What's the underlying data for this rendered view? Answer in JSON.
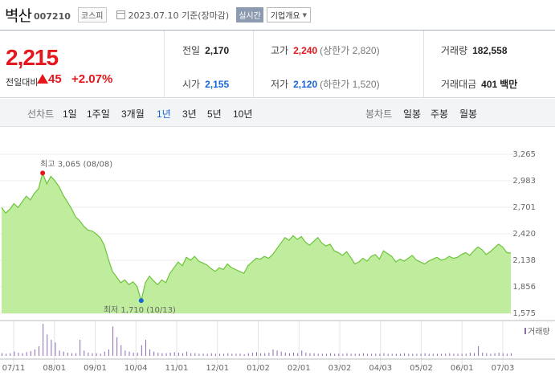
{
  "header": {
    "name": "벽산",
    "code": "007210",
    "market": "코스피",
    "date_text": "2023.07.10 기준(장마감)",
    "realtime": "실시간",
    "company_info": "기업개요"
  },
  "price": {
    "current": "2,215",
    "change_label": "전일대비",
    "change_abs": "45",
    "change_pct": "+2.07%"
  },
  "stats": {
    "prev_close": {
      "label": "전일",
      "value": "2,170"
    },
    "open": {
      "label": "시가",
      "value": "2,155"
    },
    "high": {
      "label": "고가",
      "value": "2,240",
      "sub": "(상한가 2,820)"
    },
    "low": {
      "label": "저가",
      "value": "2,120",
      "sub": "(하한가 1,520)"
    },
    "volume": {
      "label": "거래량",
      "value": "182,558"
    },
    "trade_value": {
      "label": "거래대금",
      "value": "401",
      "unit": "백만"
    }
  },
  "period": {
    "line_label": "선차트",
    "line_options": [
      "1일",
      "1주일",
      "3개월",
      "1년",
      "3년",
      "5년",
      "10년"
    ],
    "active": "1년",
    "candle_label": "봉차트",
    "candle_options": [
      "일봉",
      "주봉",
      "월봉"
    ]
  },
  "colors": {
    "up": "#e5161c",
    "down": "#1766d6",
    "area": "#b4ea8c",
    "line": "#6cc43a"
  },
  "chart_data": {
    "type": "area",
    "y_ticks": [
      "3,265",
      "2,983",
      "2,701",
      "2,420",
      "2,138",
      "1,856",
      "1,575"
    ],
    "ylim": [
      1575,
      3265
    ],
    "x_ticks": [
      "07/11",
      "08/01",
      "09/01",
      "10/04",
      "11/01",
      "12/01",
      "01/02",
      "02/01",
      "03/02",
      "04/03",
      "05/02",
      "06/01",
      "07/03"
    ],
    "high_label": "최고 3,065 (08/08)",
    "low_label": "최저 1,710 (10/13)",
    "volume_label": "거래량",
    "values": [
      2700,
      2640,
      2680,
      2740,
      2700,
      2760,
      2820,
      2780,
      2850,
      2900,
      3065,
      2950,
      3030,
      2980,
      2920,
      2830,
      2760,
      2690,
      2600,
      2560,
      2500,
      2460,
      2450,
      2420,
      2380,
      2300,
      2150,
      2020,
      1960,
      1900,
      1930,
      1880,
      1910,
      1860,
      1710,
      1900,
      1970,
      1920,
      1880,
      1930,
      1900,
      2000,
      2060,
      2120,
      2080,
      2170,
      2140,
      2180,
      2130,
      2110,
      2090,
      2050,
      2020,
      2060,
      2040,
      2100,
      2060,
      2040,
      2020,
      2000,
      2080,
      2120,
      2160,
      2150,
      2180,
      2160,
      2200,
      2260,
      2320,
      2380,
      2350,
      2400,
      2360,
      2390,
      2330,
      2300,
      2340,
      2380,
      2320,
      2290,
      2310,
      2240,
      2220,
      2190,
      2230,
      2170,
      2100,
      2120,
      2160,
      2130,
      2180,
      2200,
      2150,
      2240,
      2210,
      2180,
      2120,
      2150,
      2130,
      2160,
      2190,
      2140,
      2120,
      2100,
      2130,
      2150,
      2170,
      2140,
      2150,
      2180,
      2160,
      2170,
      2200,
      2220,
      2190,
      2240,
      2280,
      2250,
      2200,
      2230,
      2270,
      2310,
      2280,
      2220,
      2215
    ],
    "volume": [
      5,
      4,
      5,
      8,
      6,
      5,
      7,
      9,
      12,
      18,
      60,
      40,
      30,
      25,
      10,
      8,
      6,
      5,
      5,
      30,
      10,
      6,
      5,
      5,
      4,
      8,
      12,
      55,
      35,
      20,
      10,
      8,
      6,
      6,
      20,
      30,
      12,
      8,
      6,
      5,
      5,
      6,
      7,
      6,
      5,
      8,
      5,
      5,
      4,
      4,
      4,
      5,
      4,
      4,
      4,
      5,
      4,
      4,
      4,
      3,
      5,
      6,
      7,
      5,
      5,
      6,
      12,
      10,
      8,
      6,
      5,
      6,
      5,
      10,
      6,
      5,
      5,
      4,
      4,
      4,
      5,
      4,
      4,
      4,
      5,
      4,
      4,
      4,
      5,
      4,
      4,
      4,
      4,
      5,
      4,
      4,
      4,
      4,
      5,
      4,
      4,
      4,
      4,
      5,
      4,
      4,
      4,
      4,
      4,
      5,
      4,
      4,
      4,
      4,
      6,
      5,
      18,
      6,
      5,
      4,
      5,
      6,
      5,
      4,
      5
    ]
  }
}
